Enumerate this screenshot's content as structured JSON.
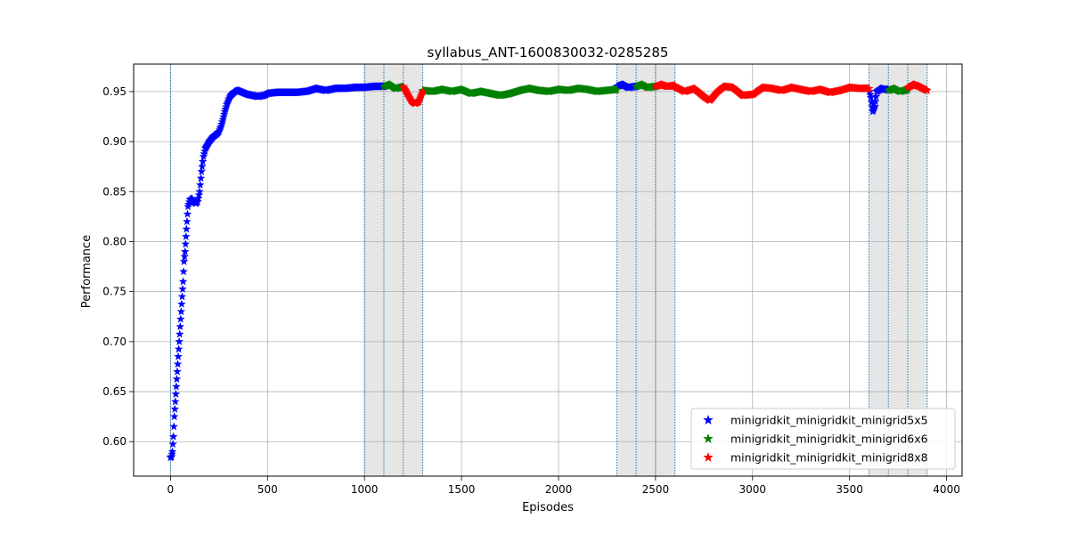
{
  "chart_data": {
    "type": "scatter",
    "title": "syllabus_ANT-1600830032-0285285",
    "xlabel": "Episodes",
    "ylabel": "Performance",
    "xlim": [
      -190,
      4080
    ],
    "ylim": [
      0.5655,
      0.9775
    ],
    "x_ticks": [
      0,
      500,
      1000,
      1500,
      2000,
      2500,
      3000,
      3500,
      4000
    ],
    "y_ticks": [
      0.6,
      0.65,
      0.7,
      0.75,
      0.8,
      0.85,
      0.9,
      0.95
    ],
    "grid": true,
    "marker": "star",
    "legend_position": "lower-right",
    "shaded_regions": [
      [
        1000,
        1300
      ],
      [
        2300,
        2600
      ],
      [
        3600,
        3900
      ]
    ],
    "vertical_lines": [
      0,
      1000,
      1100,
      1200,
      1300,
      2300,
      2400,
      2500,
      2600,
      3600,
      3700,
      3800,
      3900
    ],
    "series": [
      {
        "name": "minigridkit_minigridkit_minigrid5x5",
        "color": "#0000ff",
        "segments": [
          [
            [
              0,
              0.584
            ],
            [
              5,
              0.585
            ],
            [
              10,
              0.59
            ],
            [
              15,
              0.605
            ],
            [
              20,
              0.625
            ],
            [
              25,
              0.64
            ],
            [
              30,
              0.655
            ],
            [
              35,
              0.67
            ],
            [
              40,
              0.685
            ],
            [
              45,
              0.7
            ],
            [
              50,
              0.715
            ],
            [
              55,
              0.73
            ],
            [
              60,
              0.745
            ],
            [
              65,
              0.76
            ],
            [
              70,
              0.78
            ],
            [
              75,
              0.79
            ],
            [
              80,
              0.805
            ],
            [
              85,
              0.82
            ],
            [
              90,
              0.835
            ],
            [
              100,
              0.842
            ],
            [
              110,
              0.843
            ],
            [
              120,
              0.84
            ],
            [
              130,
              0.838
            ],
            [
              140,
              0.84
            ],
            [
              150,
              0.85
            ],
            [
              160,
              0.87
            ],
            [
              170,
              0.885
            ],
            [
              180,
              0.893
            ],
            [
              200,
              0.9
            ],
            [
              220,
              0.905
            ],
            [
              240,
              0.908
            ],
            [
              250,
              0.91
            ],
            [
              260,
              0.915
            ],
            [
              270,
              0.922
            ],
            [
              280,
              0.93
            ],
            [
              290,
              0.937
            ],
            [
              300,
              0.942
            ],
            [
              310,
              0.946
            ],
            [
              330,
              0.95
            ],
            [
              350,
              0.951
            ],
            [
              375,
              0.949
            ],
            [
              400,
              0.947
            ],
            [
              450,
              0.945
            ],
            [
              480,
              0.946
            ],
            [
              500,
              0.948
            ],
            [
              550,
              0.949
            ],
            [
              600,
              0.949
            ],
            [
              650,
              0.949
            ],
            [
              700,
              0.95
            ],
            [
              750,
              0.953
            ],
            [
              800,
              0.951
            ],
            [
              850,
              0.953
            ],
            [
              900,
              0.953
            ],
            [
              950,
              0.954
            ],
            [
              1000,
              0.954
            ],
            [
              1050,
              0.955
            ],
            [
              1100,
              0.955
            ]
          ],
          [
            [
              2300,
              0.955
            ],
            [
              2330,
              0.957
            ],
            [
              2360,
              0.954
            ],
            [
              2400,
              0.955
            ]
          ],
          [
            [
              3600,
              0.953
            ],
            [
              3610,
              0.944
            ],
            [
              3620,
              0.93
            ],
            [
              3630,
              0.935
            ],
            [
              3640,
              0.95
            ],
            [
              3660,
              0.953
            ],
            [
              3680,
              0.952
            ],
            [
              3700,
              0.952
            ]
          ]
        ]
      },
      {
        "name": "minigridkit_minigridkit_minigrid6x6",
        "color": "#008000",
        "segments": [
          [
            [
              1100,
              0.955
            ],
            [
              1130,
              0.957
            ],
            [
              1160,
              0.953
            ],
            [
              1200,
              0.955
            ]
          ],
          [
            [
              1300,
              0.951
            ],
            [
              1350,
              0.95
            ],
            [
              1400,
              0.952
            ],
            [
              1450,
              0.95
            ],
            [
              1500,
              0.952
            ],
            [
              1550,
              0.948
            ],
            [
              1600,
              0.95
            ],
            [
              1650,
              0.948
            ],
            [
              1700,
              0.946
            ],
            [
              1750,
              0.948
            ],
            [
              1800,
              0.951
            ],
            [
              1850,
              0.953
            ],
            [
              1900,
              0.951
            ],
            [
              1950,
              0.95
            ],
            [
              2000,
              0.952
            ],
            [
              2050,
              0.951
            ],
            [
              2100,
              0.953
            ],
            [
              2150,
              0.952
            ],
            [
              2200,
              0.95
            ],
            [
              2250,
              0.951
            ],
            [
              2300,
              0.952
            ]
          ],
          [
            [
              2400,
              0.955
            ],
            [
              2430,
              0.957
            ],
            [
              2460,
              0.954
            ],
            [
              2500,
              0.955
            ]
          ],
          [
            [
              3700,
              0.951
            ],
            [
              3730,
              0.953
            ],
            [
              3760,
              0.95
            ],
            [
              3800,
              0.952
            ]
          ]
        ]
      },
      {
        "name": "minigridkit_minigridkit_minigrid8x8",
        "color": "#ff0000",
        "segments": [
          [
            [
              1200,
              0.955
            ],
            [
              1220,
              0.948
            ],
            [
              1240,
              0.941
            ],
            [
              1260,
              0.938
            ],
            [
              1280,
              0.94
            ],
            [
              1300,
              0.95
            ]
          ],
          [
            [
              2500,
              0.955
            ],
            [
              2530,
              0.957
            ],
            [
              2560,
              0.955
            ],
            [
              2600,
              0.956
            ]
          ],
          [
            [
              2600,
              0.955
            ],
            [
              2650,
              0.95
            ],
            [
              2700,
              0.953
            ],
            [
              2750,
              0.945
            ],
            [
              2780,
              0.941
            ],
            [
              2820,
              0.95
            ],
            [
              2850,
              0.955
            ],
            [
              2900,
              0.954
            ],
            [
              2950,
              0.946
            ],
            [
              3000,
              0.947
            ],
            [
              3050,
              0.954
            ],
            [
              3100,
              0.953
            ],
            [
              3150,
              0.951
            ],
            [
              3200,
              0.954
            ],
            [
              3250,
              0.952
            ],
            [
              3300,
              0.95
            ],
            [
              3350,
              0.952
            ],
            [
              3400,
              0.949
            ],
            [
              3450,
              0.951
            ],
            [
              3500,
              0.954
            ],
            [
              3550,
              0.953
            ],
            [
              3600,
              0.953
            ]
          ],
          [
            [
              3800,
              0.954
            ],
            [
              3830,
              0.957
            ],
            [
              3860,
              0.955
            ],
            [
              3900,
              0.951
            ]
          ]
        ]
      }
    ]
  }
}
